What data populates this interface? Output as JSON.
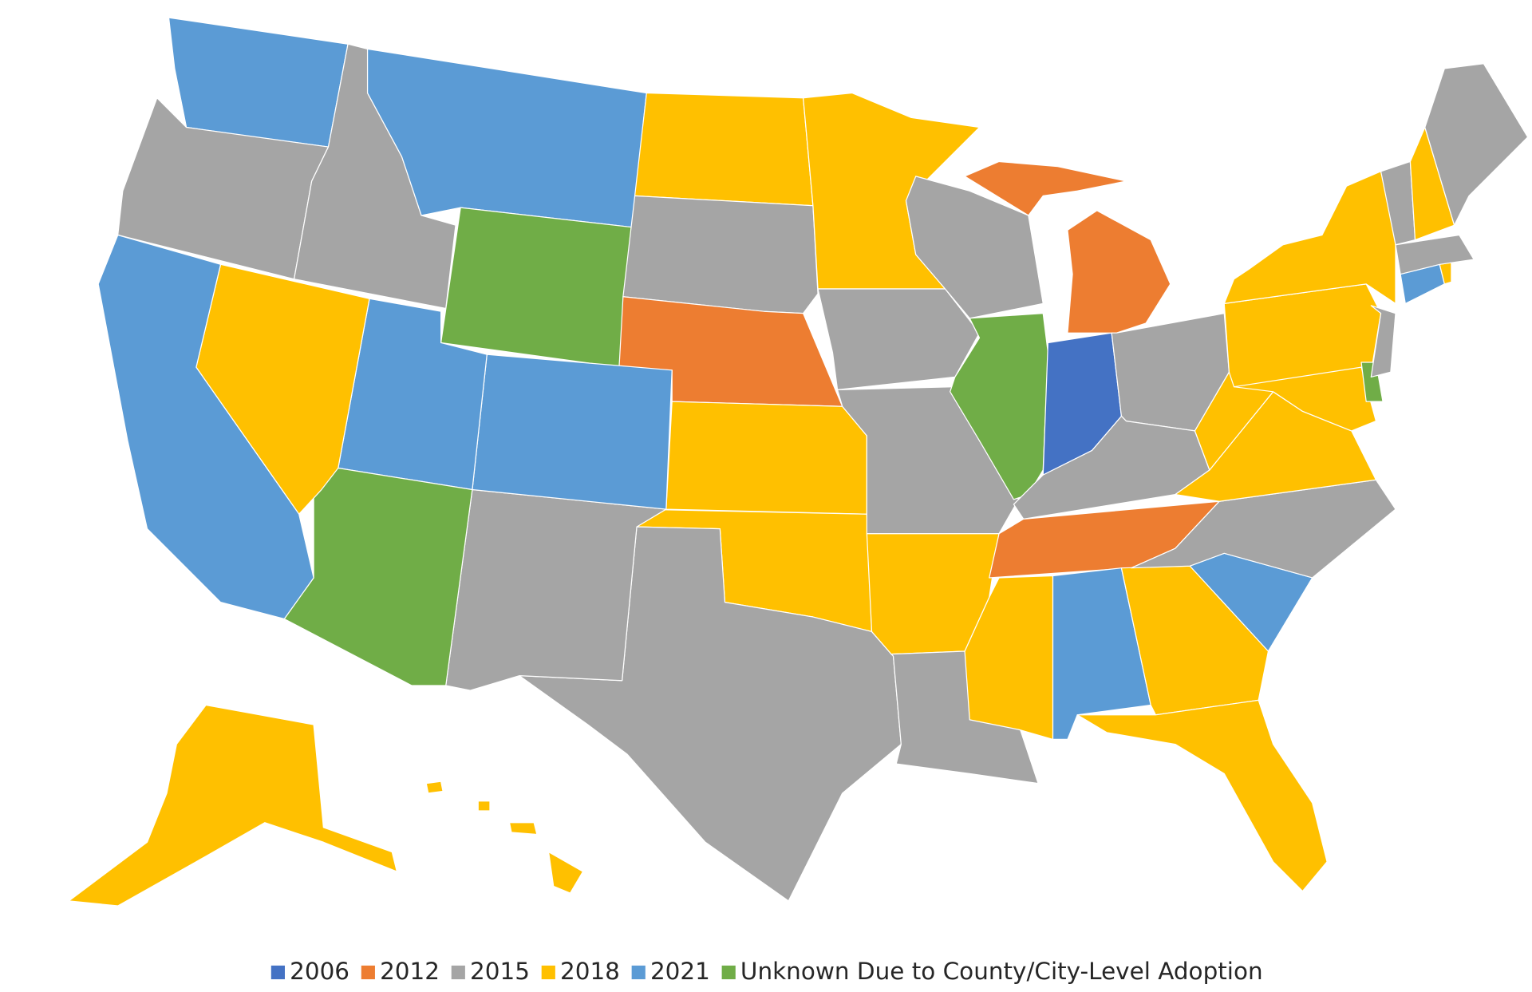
{
  "legend": [
    {
      "label": "2006",
      "color": "#4472c4"
    },
    {
      "label": "2012",
      "color": "#ed7d31"
    },
    {
      "label": "2015",
      "color": "#a5a5a5"
    },
    {
      "label": "2018",
      "color": "#ffc000"
    },
    {
      "label": "2021",
      "color": "#5b9bd5"
    },
    {
      "label": "Unknown Due to County/City-Level Adoption",
      "color": "#70ad47"
    }
  ]
}
